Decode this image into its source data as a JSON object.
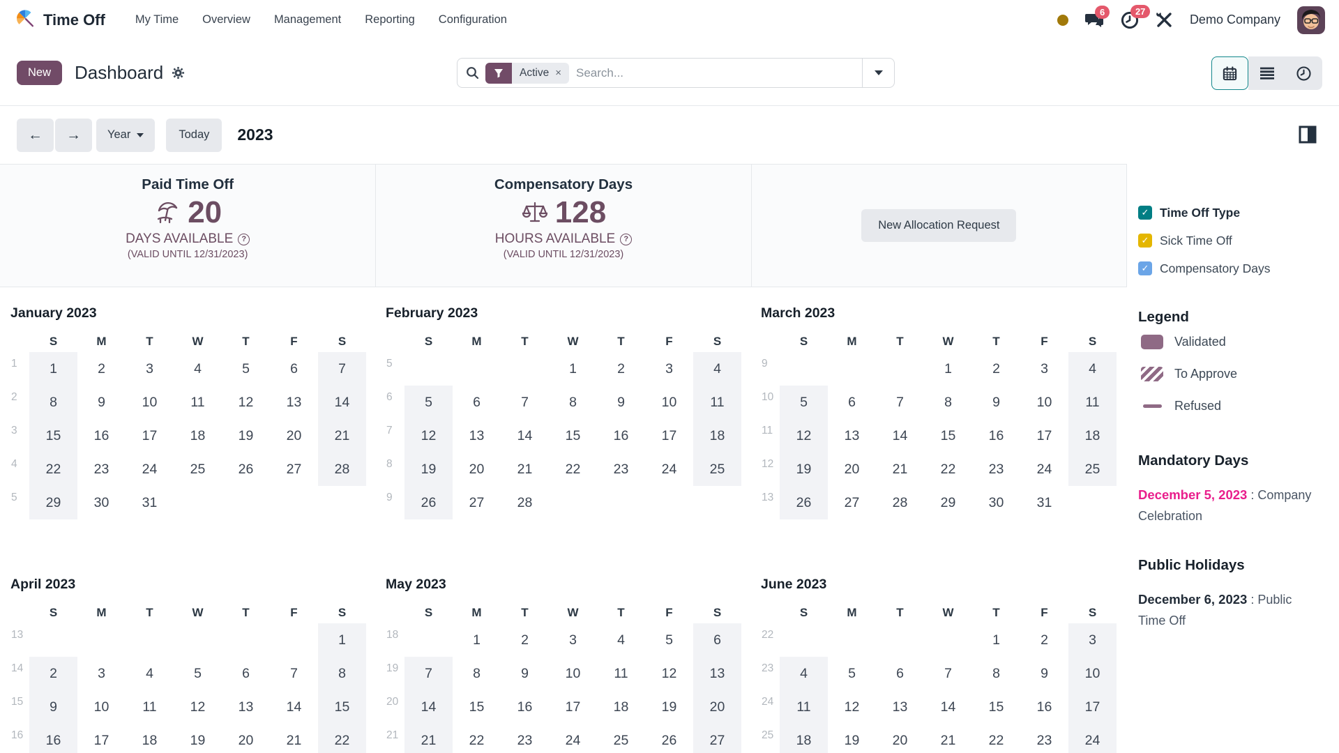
{
  "navbar": {
    "app_name": "Time Off",
    "menu": [
      "My Time",
      "Overview",
      "Management",
      "Reporting",
      "Configuration"
    ],
    "chat_badge": "6",
    "activity_badge": "27",
    "company": "Demo Company"
  },
  "control_bar": {
    "new_label": "New",
    "title": "Dashboard",
    "search": {
      "filter_label": "Active",
      "remove_symbol": "×",
      "placeholder": "Search..."
    }
  },
  "toolbar": {
    "prev_symbol": "←",
    "next_symbol": "→",
    "scale_label": "Year",
    "today_label": "Today",
    "year": "2023"
  },
  "stats": {
    "cards": [
      {
        "icon": "beach-umbrella-icon",
        "title": "Paid Time Off",
        "value": "20",
        "unit": "DAYS AVAILABLE",
        "help": "?",
        "valid": "(VALID UNTIL 12/31/2023)"
      },
      {
        "icon": "scales-icon",
        "title": "Compensatory Days",
        "value": "128",
        "unit": "HOURS AVAILABLE",
        "help": "?",
        "valid": "(VALID UNTIL 12/31/2023)"
      }
    ],
    "allocation_button": "New Allocation Request"
  },
  "sidebar": {
    "filters": [
      {
        "label": "Time Off Type",
        "color": "#017E84",
        "checked": true,
        "bold": true
      },
      {
        "label": "Sick Time Off",
        "color": "#E4B600",
        "checked": true,
        "bold": false
      },
      {
        "label": "Compensatory Days",
        "color": "#6BA5E7",
        "checked": true,
        "bold": false
      }
    ],
    "check_symbol": "✓",
    "legend": {
      "title": "Legend",
      "items": [
        {
          "label": "Validated",
          "style": "solid"
        },
        {
          "label": "To Approve",
          "style": "striped"
        },
        {
          "label": "Refused",
          "style": "dash"
        }
      ]
    },
    "mandatory": {
      "title": "Mandatory Days",
      "date": "December 5, 2023",
      "sep": " : ",
      "desc": "Company Celebration"
    },
    "holidays": {
      "title": "Public Holidays",
      "date": "December 6, 2023",
      "sep": " : ",
      "desc": "Public Time Off"
    }
  },
  "calendar": {
    "day_headers": [
      "S",
      "M",
      "T",
      "W",
      "T",
      "F",
      "S"
    ],
    "months": [
      {
        "title": "January 2023",
        "weeks": [
          {
            "num": 1,
            "days": [
              1,
              2,
              3,
              4,
              5,
              6,
              7
            ]
          },
          {
            "num": 2,
            "days": [
              8,
              9,
              10,
              11,
              12,
              13,
              14
            ]
          },
          {
            "num": 3,
            "days": [
              15,
              16,
              17,
              18,
              19,
              20,
              21
            ]
          },
          {
            "num": 4,
            "days": [
              22,
              23,
              24,
              25,
              26,
              27,
              28
            ]
          },
          {
            "num": 5,
            "days": [
              29,
              30,
              31,
              null,
              null,
              null,
              null
            ]
          }
        ]
      },
      {
        "title": "February 2023",
        "weeks": [
          {
            "num": 5,
            "days": [
              null,
              null,
              null,
              1,
              2,
              3,
              4
            ]
          },
          {
            "num": 6,
            "days": [
              5,
              6,
              7,
              8,
              9,
              10,
              11
            ]
          },
          {
            "num": 7,
            "days": [
              12,
              13,
              14,
              15,
              16,
              17,
              18
            ]
          },
          {
            "num": 8,
            "days": [
              19,
              20,
              21,
              22,
              23,
              24,
              25
            ]
          },
          {
            "num": 9,
            "days": [
              26,
              27,
              28,
              null,
              null,
              null,
              null
            ]
          }
        ]
      },
      {
        "title": "March 2023",
        "weeks": [
          {
            "num": 9,
            "days": [
              null,
              null,
              null,
              1,
              2,
              3,
              4
            ]
          },
          {
            "num": 10,
            "days": [
              5,
              6,
              7,
              8,
              9,
              10,
              11
            ]
          },
          {
            "num": 11,
            "days": [
              12,
              13,
              14,
              15,
              16,
              17,
              18
            ]
          },
          {
            "num": 12,
            "days": [
              19,
              20,
              21,
              22,
              23,
              24,
              25
            ]
          },
          {
            "num": 13,
            "days": [
              26,
              27,
              28,
              29,
              30,
              31,
              null
            ]
          }
        ]
      },
      {
        "title": "April 2023",
        "weeks": [
          {
            "num": 13,
            "days": [
              null,
              null,
              null,
              null,
              null,
              null,
              1
            ]
          },
          {
            "num": 14,
            "days": [
              2,
              3,
              4,
              5,
              6,
              7,
              8
            ]
          },
          {
            "num": 15,
            "days": [
              9,
              10,
              11,
              12,
              13,
              14,
              15
            ]
          },
          {
            "num": 16,
            "days": [
              16,
              17,
              18,
              19,
              20,
              21,
              22
            ]
          }
        ]
      },
      {
        "title": "May 2023",
        "weeks": [
          {
            "num": 18,
            "days": [
              null,
              1,
              2,
              3,
              4,
              5,
              6
            ]
          },
          {
            "num": 19,
            "days": [
              7,
              8,
              9,
              10,
              11,
              12,
              13
            ]
          },
          {
            "num": 20,
            "days": [
              14,
              15,
              16,
              17,
              18,
              19,
              20
            ]
          },
          {
            "num": 21,
            "days": [
              21,
              22,
              23,
              24,
              25,
              26,
              27
            ]
          }
        ]
      },
      {
        "title": "June 2023",
        "weeks": [
          {
            "num": 22,
            "days": [
              null,
              null,
              null,
              null,
              1,
              2,
              3
            ]
          },
          {
            "num": 23,
            "days": [
              4,
              5,
              6,
              7,
              8,
              9,
              10
            ]
          },
          {
            "num": 24,
            "days": [
              11,
              12,
              13,
              14,
              15,
              16,
              17
            ]
          },
          {
            "num": 25,
            "days": [
              18,
              19,
              20,
              21,
              22,
              23,
              24
            ]
          }
        ]
      }
    ]
  },
  "colors": {
    "primary": "#714B67",
    "stat_accent": "#6C4D62",
    "badge_red": "#E4586B",
    "mandatory_pink": "#E91E8C",
    "legend_purple": "#8F6A85",
    "active_view_teal": "#12878B",
    "weekend_shade": "#f2f3f6"
  }
}
